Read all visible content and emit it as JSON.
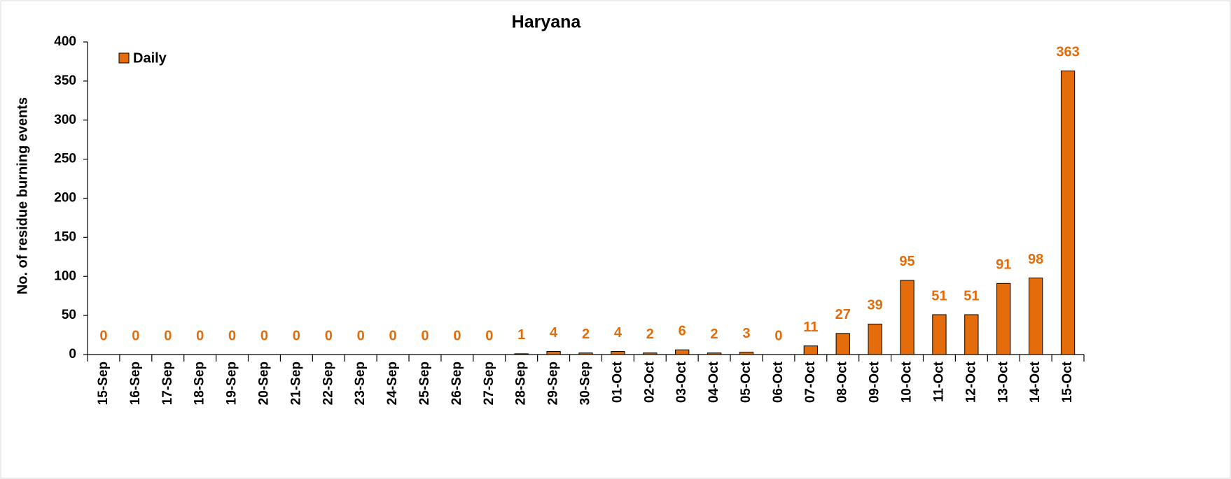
{
  "chart_data": {
    "type": "bar",
    "title": "Haryana",
    "y_label": "No. of residue burning events",
    "categories": [
      "15-Sep",
      "16-Sep",
      "17-Sep",
      "18-Sep",
      "19-Sep",
      "20-Sep",
      "21-Sep",
      "22-Sep",
      "23-Sep",
      "24-Sep",
      "25-Sep",
      "26-Sep",
      "27-Sep",
      "28-Sep",
      "29-Sep",
      "30-Sep",
      "01-Oct",
      "02-Oct",
      "03-Oct",
      "04-Oct",
      "05-Oct",
      "06-Oct",
      "07-Oct",
      "08-Oct",
      "09-Oct",
      "10-Oct",
      "11-Oct",
      "12-Oct",
      "13-Oct",
      "14-Oct",
      "15-Oct"
    ],
    "series": [
      {
        "name": "Daily",
        "color": "#e46c0a",
        "values": [
          0,
          0,
          0,
          0,
          0,
          0,
          0,
          0,
          0,
          0,
          0,
          0,
          0,
          1,
          4,
          2,
          4,
          2,
          6,
          2,
          3,
          0,
          11,
          27,
          39,
          95,
          51,
          51,
          91,
          98,
          363
        ]
      }
    ],
    "ylim": [
      0,
      400
    ],
    "yticks": [
      0,
      50,
      100,
      150,
      200,
      250,
      300,
      350,
      400
    ],
    "grid": false,
    "legend": "upper left"
  }
}
